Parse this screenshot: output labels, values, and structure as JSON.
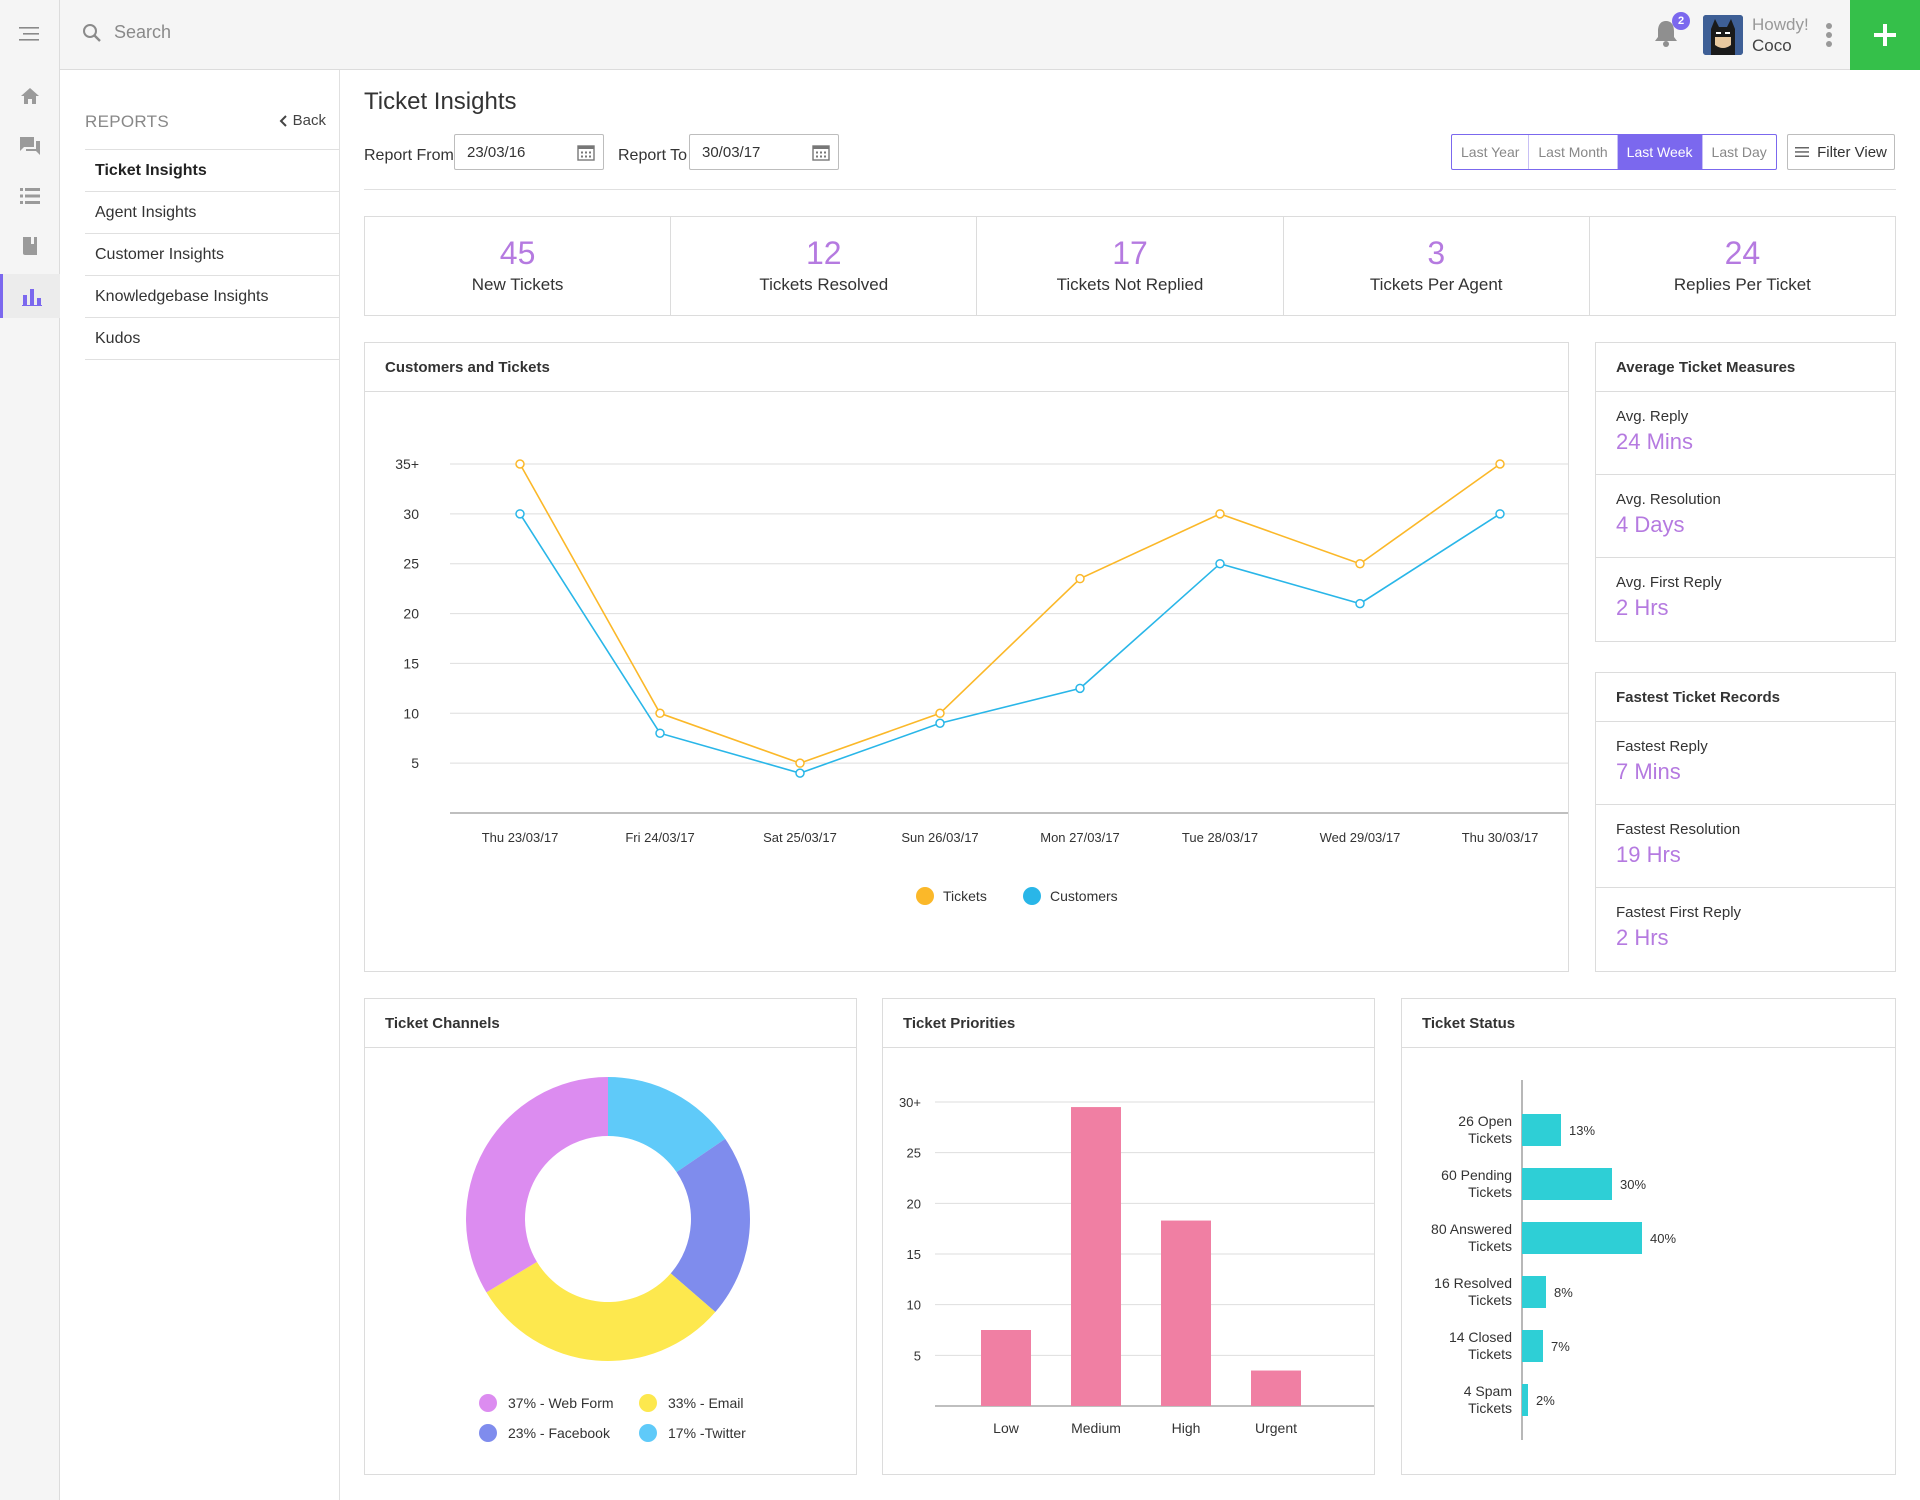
{
  "search": {
    "placeholder": "Search"
  },
  "header": {
    "notification_count": "2",
    "greeting": "Howdy!",
    "user_name": "Coco"
  },
  "colors": {
    "accent": "#7b68ee",
    "value": "#b57ae0",
    "add": "#35c04a",
    "tickets": "#fbb829",
    "customers": "#29b6e8",
    "bars": "#f07fa3",
    "status": "#2ecfd6"
  },
  "rail": {
    "icons": [
      "menu-icon",
      "home-icon",
      "chat-icon",
      "list-icon",
      "book-icon",
      "chart-icon"
    ]
  },
  "subnav": {
    "title": "REPORTS",
    "back_label": "Back",
    "items": [
      {
        "label": "Ticket Insights"
      },
      {
        "label": "Agent Insights"
      },
      {
        "label": "Customer Insights"
      },
      {
        "label": "Knowledgebase Insights"
      },
      {
        "label": "Kudos"
      }
    ]
  },
  "page": {
    "title": "Ticket Insights"
  },
  "filters": {
    "from_label": "Report From",
    "from_value": "23/03/16",
    "to_label": "Report To",
    "to_value": "30/03/17",
    "ranges": [
      "Last Year",
      "Last Month",
      "Last Week",
      "Last Day"
    ],
    "selected_range": "Last Week",
    "filter_view_label": "Filter View"
  },
  "stats": [
    {
      "value": "45",
      "label": "New Tickets"
    },
    {
      "value": "12",
      "label": "Tickets Resolved"
    },
    {
      "value": "17",
      "label": "Tickets Not Replied"
    },
    {
      "value": "3",
      "label": "Tickets Per Agent"
    },
    {
      "value": "24",
      "label": "Replies Per Ticket"
    }
  ],
  "average_measures": {
    "title": "Average Ticket Measures",
    "items": [
      {
        "label": "Avg. Reply",
        "value": "24 Mins"
      },
      {
        "label": "Avg. Resolution",
        "value": "4 Days"
      },
      {
        "label": "Avg. First Reply",
        "value": "2 Hrs"
      }
    ]
  },
  "fastest_records": {
    "title": "Fastest Ticket Records",
    "items": [
      {
        "label": "Fastest Reply",
        "value": "7 Mins"
      },
      {
        "label": "Fastest Resolution",
        "value": "19 Hrs"
      },
      {
        "label": "Fastest First Reply",
        "value": "2 Hrs"
      }
    ]
  },
  "chart_data": [
    {
      "type": "line",
      "title": "Customers and Tickets",
      "categories": [
        "Thu 23/03/17",
        "Fri 24/03/17",
        "Sat 25/03/17",
        "Sun 26/03/17",
        "Mon 27/03/17",
        "Tue 28/03/17",
        "Wed 29/03/17",
        "Thu 30/03/17"
      ],
      "series": [
        {
          "name": "Tickets",
          "values": [
            35,
            10,
            5,
            10,
            23.5,
            30,
            25,
            35
          ]
        },
        {
          "name": "Customers",
          "values": [
            30,
            8,
            4,
            9,
            12.5,
            25,
            21,
            30
          ]
        }
      ],
      "ylim": [
        0,
        35
      ],
      "yticks": [
        "5",
        "10",
        "15",
        "20",
        "25",
        "30",
        "35+"
      ],
      "grid": true,
      "legend": "bottom"
    },
    {
      "type": "pie",
      "title": "Ticket Channels",
      "slices": [
        {
          "label": "37% - Web Form",
          "value": 37,
          "color": "#dc8cf0"
        },
        {
          "label": "33% - Email",
          "value": 33,
          "color": "#fde84e"
        },
        {
          "label": "23% - Facebook",
          "value": 23,
          "color": "#7f8ced"
        },
        {
          "label": "17% -Twitter",
          "value": 17,
          "color": "#5fcaf9"
        }
      ],
      "legend": "bottom"
    },
    {
      "type": "bar",
      "title": "Ticket Priorities",
      "categories": [
        "Low",
        "Medium",
        "High",
        "Urgent"
      ],
      "values": [
        7.5,
        29.5,
        18.3,
        3.5
      ],
      "ylim": [
        0,
        30
      ],
      "yticks": [
        "5",
        "10",
        "15",
        "20",
        "25",
        "30+"
      ],
      "grid": true
    },
    {
      "type": "bar",
      "orientation": "horizontal",
      "title": "Ticket Status",
      "categories": [
        "26 Open Tickets",
        "60 Pending Tickets",
        "80 Answered Tickets",
        "16 Resolved Tickets",
        "14 Closed Tickets",
        "4 Spam Tickets"
      ],
      "values": [
        13,
        30,
        40,
        8,
        7,
        2
      ],
      "value_labels": [
        "13%",
        "30%",
        "40%",
        "8%",
        "7%",
        "2%"
      ]
    }
  ]
}
